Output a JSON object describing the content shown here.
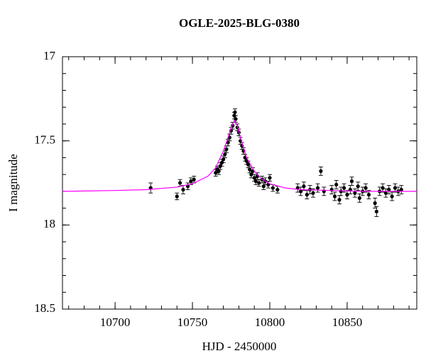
{
  "chart_data": {
    "type": "scatter",
    "title": "OGLE-2025-BLG-0380",
    "x_label": "HJD - 2450000",
    "y_label": "I magnitude",
    "xlim": [
      10666,
      10895
    ],
    "ylim": [
      17,
      18.5
    ],
    "invert_y": true,
    "xticks": [
      10700,
      10750,
      10800,
      10850
    ],
    "yticks": [
      17,
      17.5,
      18,
      18.5
    ],
    "x_minor_step": 10,
    "y_minor_step": 0.1,
    "series": [
      {
        "type": "scatter",
        "color": "#000000",
        "x": [
          10723,
          10740,
          10742,
          10744,
          10747,
          10749,
          10751,
          10765,
          10766,
          10767,
          10768,
          10769,
          10770,
          10771,
          10772,
          10773,
          10774,
          10775,
          10776,
          10777,
          10777.5,
          10778,
          10779,
          10780,
          10781,
          10782,
          10783,
          10784,
          10785,
          10786,
          10787,
          10788,
          10789,
          10790,
          10791,
          10792,
          10793,
          10795,
          10796,
          10797,
          10799,
          10800,
          10802,
          10805,
          10818,
          10820,
          10822,
          10824,
          10826,
          10828,
          10831,
          10833,
          10835,
          10840,
          10842,
          10843,
          10845,
          10846,
          10848,
          10850,
          10852,
          10853,
          10855,
          10857,
          10858,
          10860,
          10862,
          10864,
          10868,
          10869,
          10871,
          10873,
          10875,
          10877,
          10879,
          10881,
          10883,
          10885
        ],
        "values": [
          17.78,
          17.83,
          17.75,
          17.79,
          17.77,
          17.74,
          17.73,
          17.69,
          17.67,
          17.68,
          17.65,
          17.63,
          17.61,
          17.58,
          17.55,
          17.51,
          17.48,
          17.44,
          17.41,
          17.35,
          17.33,
          17.37,
          17.42,
          17.45,
          17.5,
          17.53,
          17.56,
          17.6,
          17.62,
          17.64,
          17.67,
          17.7,
          17.68,
          17.72,
          17.74,
          17.71,
          17.75,
          17.73,
          17.77,
          17.74,
          17.76,
          17.72,
          17.78,
          17.79,
          17.78,
          17.8,
          17.77,
          17.82,
          17.79,
          17.81,
          17.78,
          17.68,
          17.8,
          17.79,
          17.83,
          17.76,
          17.85,
          17.8,
          17.78,
          17.82,
          17.79,
          17.74,
          17.81,
          17.77,
          17.84,
          17.8,
          17.78,
          17.82,
          17.87,
          17.92,
          17.8,
          17.78,
          17.81,
          17.79,
          17.83,
          17.78,
          17.8,
          17.79
        ],
        "errors": [
          0.03,
          0.02,
          0.02,
          0.025,
          0.02,
          0.02,
          0.02,
          0.02,
          0.02,
          0.02,
          0.02,
          0.02,
          0.02,
          0.02,
          0.02,
          0.02,
          0.02,
          0.02,
          0.02,
          0.02,
          0.02,
          0.02,
          0.02,
          0.02,
          0.02,
          0.02,
          0.02,
          0.02,
          0.02,
          0.02,
          0.02,
          0.02,
          0.02,
          0.02,
          0.02,
          0.02,
          0.02,
          0.02,
          0.02,
          0.02,
          0.02,
          0.02,
          0.02,
          0.02,
          0.025,
          0.025,
          0.025,
          0.025,
          0.025,
          0.025,
          0.025,
          0.025,
          0.025,
          0.025,
          0.025,
          0.025,
          0.025,
          0.025,
          0.025,
          0.025,
          0.025,
          0.025,
          0.025,
          0.025,
          0.025,
          0.025,
          0.025,
          0.025,
          0.03,
          0.03,
          0.025,
          0.025,
          0.025,
          0.025,
          0.025,
          0.025,
          0.025,
          0.025
        ]
      },
      {
        "type": "line",
        "color": "#ff00ff",
        "x": [
          10666,
          10700,
          10720,
          10740,
          10750,
          10760,
          10765,
          10770,
          10773,
          10775,
          10777,
          10779,
          10781,
          10785,
          10790,
          10795,
          10800,
          10810,
          10820,
          10840,
          10860,
          10895
        ],
        "values": [
          17.8,
          17.795,
          17.79,
          17.775,
          17.755,
          17.71,
          17.66,
          17.56,
          17.48,
          17.42,
          17.38,
          17.41,
          17.48,
          17.6,
          17.68,
          17.73,
          17.755,
          17.78,
          17.79,
          17.795,
          17.8,
          17.8
        ]
      }
    ]
  }
}
